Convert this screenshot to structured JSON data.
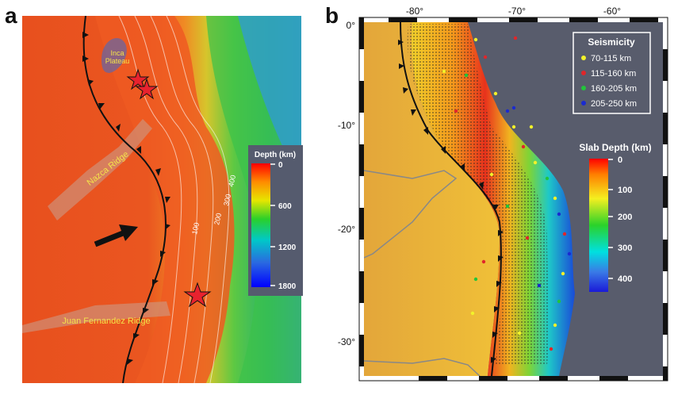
{
  "panel_a": {
    "label": "a",
    "annotations": {
      "inca_plateau_line1": "Inca",
      "inca_plateau_line2": "Plateau",
      "nazca_ridge": "Nazca Ridge",
      "juan_fernandez_ridge": "Juan Fernandez Ridge"
    },
    "contour_labels": [
      "100",
      "200",
      "300",
      "400"
    ],
    "depth_legend": {
      "title": "Depth (km)",
      "ticks": [
        "0",
        "600",
        "1200",
        "1800"
      ]
    }
  },
  "panel_b": {
    "label": "b",
    "lon_ticks": [
      "-80°",
      "-70°",
      "-60°"
    ],
    "lat_ticks": [
      "0°",
      "-10°",
      "-20°",
      "-30°"
    ],
    "seismicity_legend": {
      "title": "Seismicity",
      "entries": [
        {
          "label": "70-115 km",
          "color": "#f2f22a"
        },
        {
          "label": "115-160 km",
          "color": "#e0262a"
        },
        {
          "label": "160-205 km",
          "color": "#22c53a"
        },
        {
          "label": "205-250 km",
          "color": "#1a2ad0"
        }
      ]
    },
    "slab_legend": {
      "title": "Slab Depth (km)",
      "ticks": [
        "0",
        "100",
        "200",
        "300",
        "400"
      ]
    }
  }
}
